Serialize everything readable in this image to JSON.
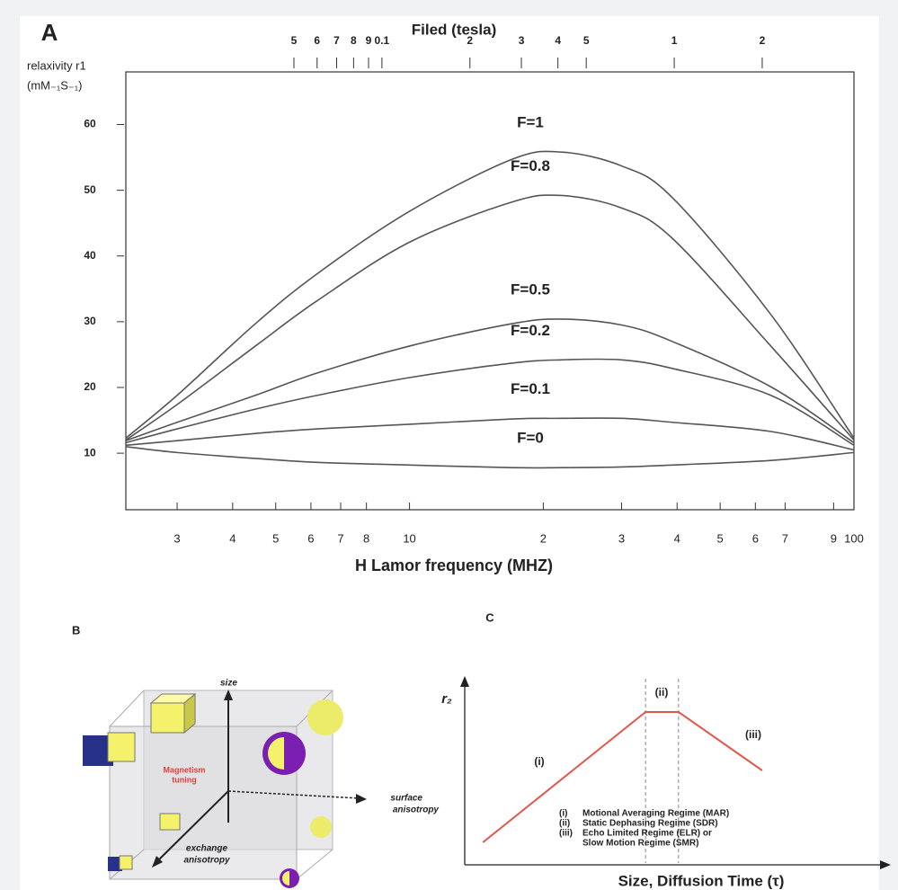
{
  "chart_data": [
    {
      "type": "line",
      "panel": "A",
      "x2_label": "Filed (tesla)",
      "xlabel": "H Lamor frequency (MHZ)",
      "ylabel": [
        "relaxivity r1",
        "(mM₋₁S₋₁)"
      ],
      "log_x": true,
      "xlim": [
        2.3,
        100
      ],
      "xticks": [
        3,
        4,
        5,
        6,
        7,
        8,
        10,
        {
          "value": 20,
          "label": "2"
        },
        {
          "value": 30,
          "label": "3"
        },
        {
          "value": 40,
          "label": "4"
        },
        {
          "value": 50,
          "label": "5"
        },
        {
          "value": 60,
          "label": "6"
        },
        {
          "value": 70,
          "label": "7"
        },
        {
          "value": 90,
          "label": "9"
        },
        100
      ],
      "x2lim": [
        0.0133,
        4.12
      ],
      "x2ticks": [
        {
          "value": 0.05,
          "label": "5"
        },
        {
          "value": 0.06,
          "label": "6"
        },
        {
          "value": 0.07,
          "label": "7"
        },
        {
          "value": 0.08,
          "label": "8"
        },
        {
          "value": 0.09,
          "label": "9"
        },
        0.1,
        {
          "value": 0.2,
          "label": "2"
        },
        {
          "value": 0.3,
          "label": "3"
        },
        {
          "value": 0.4,
          "label": "4"
        },
        {
          "value": 0.5,
          "label": "5"
        },
        1,
        2
      ],
      "ylim": [
        1.4,
        68
      ],
      "yticks": [
        10,
        20,
        30,
        40,
        50,
        60
      ],
      "x": [
        2.3,
        3,
        4.5,
        6.2,
        10,
        17,
        22,
        30,
        39,
        65,
        100
      ],
      "series": [
        {
          "name": "F=1",
          "color": "#555555",
          "values": [
            12.3,
            18.8,
            29.7,
            37.3,
            46.8,
            54.7,
            55.8,
            53.7,
            48.9,
            31.1,
            12.3
          ]
        },
        {
          "name": "F=0.8",
          "color": "#555555",
          "values": [
            12.0,
            17.4,
            26.3,
            33.2,
            42.1,
            48.2,
            49.2,
            47.3,
            42.7,
            26.3,
            12.0
          ]
        },
        {
          "name": "F=0.5",
          "color": "#555555",
          "values": [
            11.9,
            14.7,
            18.8,
            22.2,
            26.3,
            29.7,
            30.4,
            29.5,
            27.0,
            20.1,
            11.6
          ]
        },
        {
          "name": "F=0.2",
          "color": "#555555",
          "values": [
            11.6,
            13.7,
            16.7,
            18.8,
            21.5,
            23.7,
            24.2,
            24.2,
            22.9,
            18.8,
            11.2
          ]
        },
        {
          "name": "F=0.1",
          "color": "#555555",
          "values": [
            11.2,
            11.9,
            13.0,
            13.7,
            14.4,
            15.2,
            15.3,
            15.3,
            14.7,
            13.3,
            10.5
          ]
        },
        {
          "name": "F=0",
          "color": "#555555",
          "values": [
            11.0,
            10.1,
            9.2,
            8.6,
            8.2,
            7.8,
            7.8,
            7.9,
            8.2,
            8.9,
            10.1
          ]
        }
      ]
    },
    {
      "type": "line",
      "panel": "C",
      "xlabel": "Size, Diffusion Time (τ)",
      "ylabel": "r₂",
      "xlim": [
        0,
        100
      ],
      "ylim": [
        0,
        100
      ],
      "x": [
        4.3,
        42.8,
        50.6,
        70.4
      ],
      "series": [
        {
          "color": "#e0584c",
          "values": [
            11.5,
            84,
            84,
            51.5
          ]
        }
      ],
      "boundaries": [
        42.8,
        50.6
      ],
      "regimes": [
        "(i)",
        "(ii)",
        "(iii)"
      ],
      "notes": [
        {
          "num": "(i)",
          "text": "Motional Averaging Regime (MAR)"
        },
        {
          "num": "(ii)",
          "text": "Static Dephasing Regime (SDR)"
        },
        {
          "num": "(iii)",
          "text": "Echo Limited Regime (ELR) or"
        },
        {
          "text": "Slow Motion Regime (SMR)"
        }
      ]
    }
  ],
  "diagram_b": {
    "panel": "B",
    "size_axis": "size",
    "center": [
      "Magnetism",
      "tuning"
    ],
    "surface_axis": [
      "surface",
      "anisotropy"
    ],
    "exchange_axis": [
      "exchange",
      "anisotropy"
    ]
  }
}
